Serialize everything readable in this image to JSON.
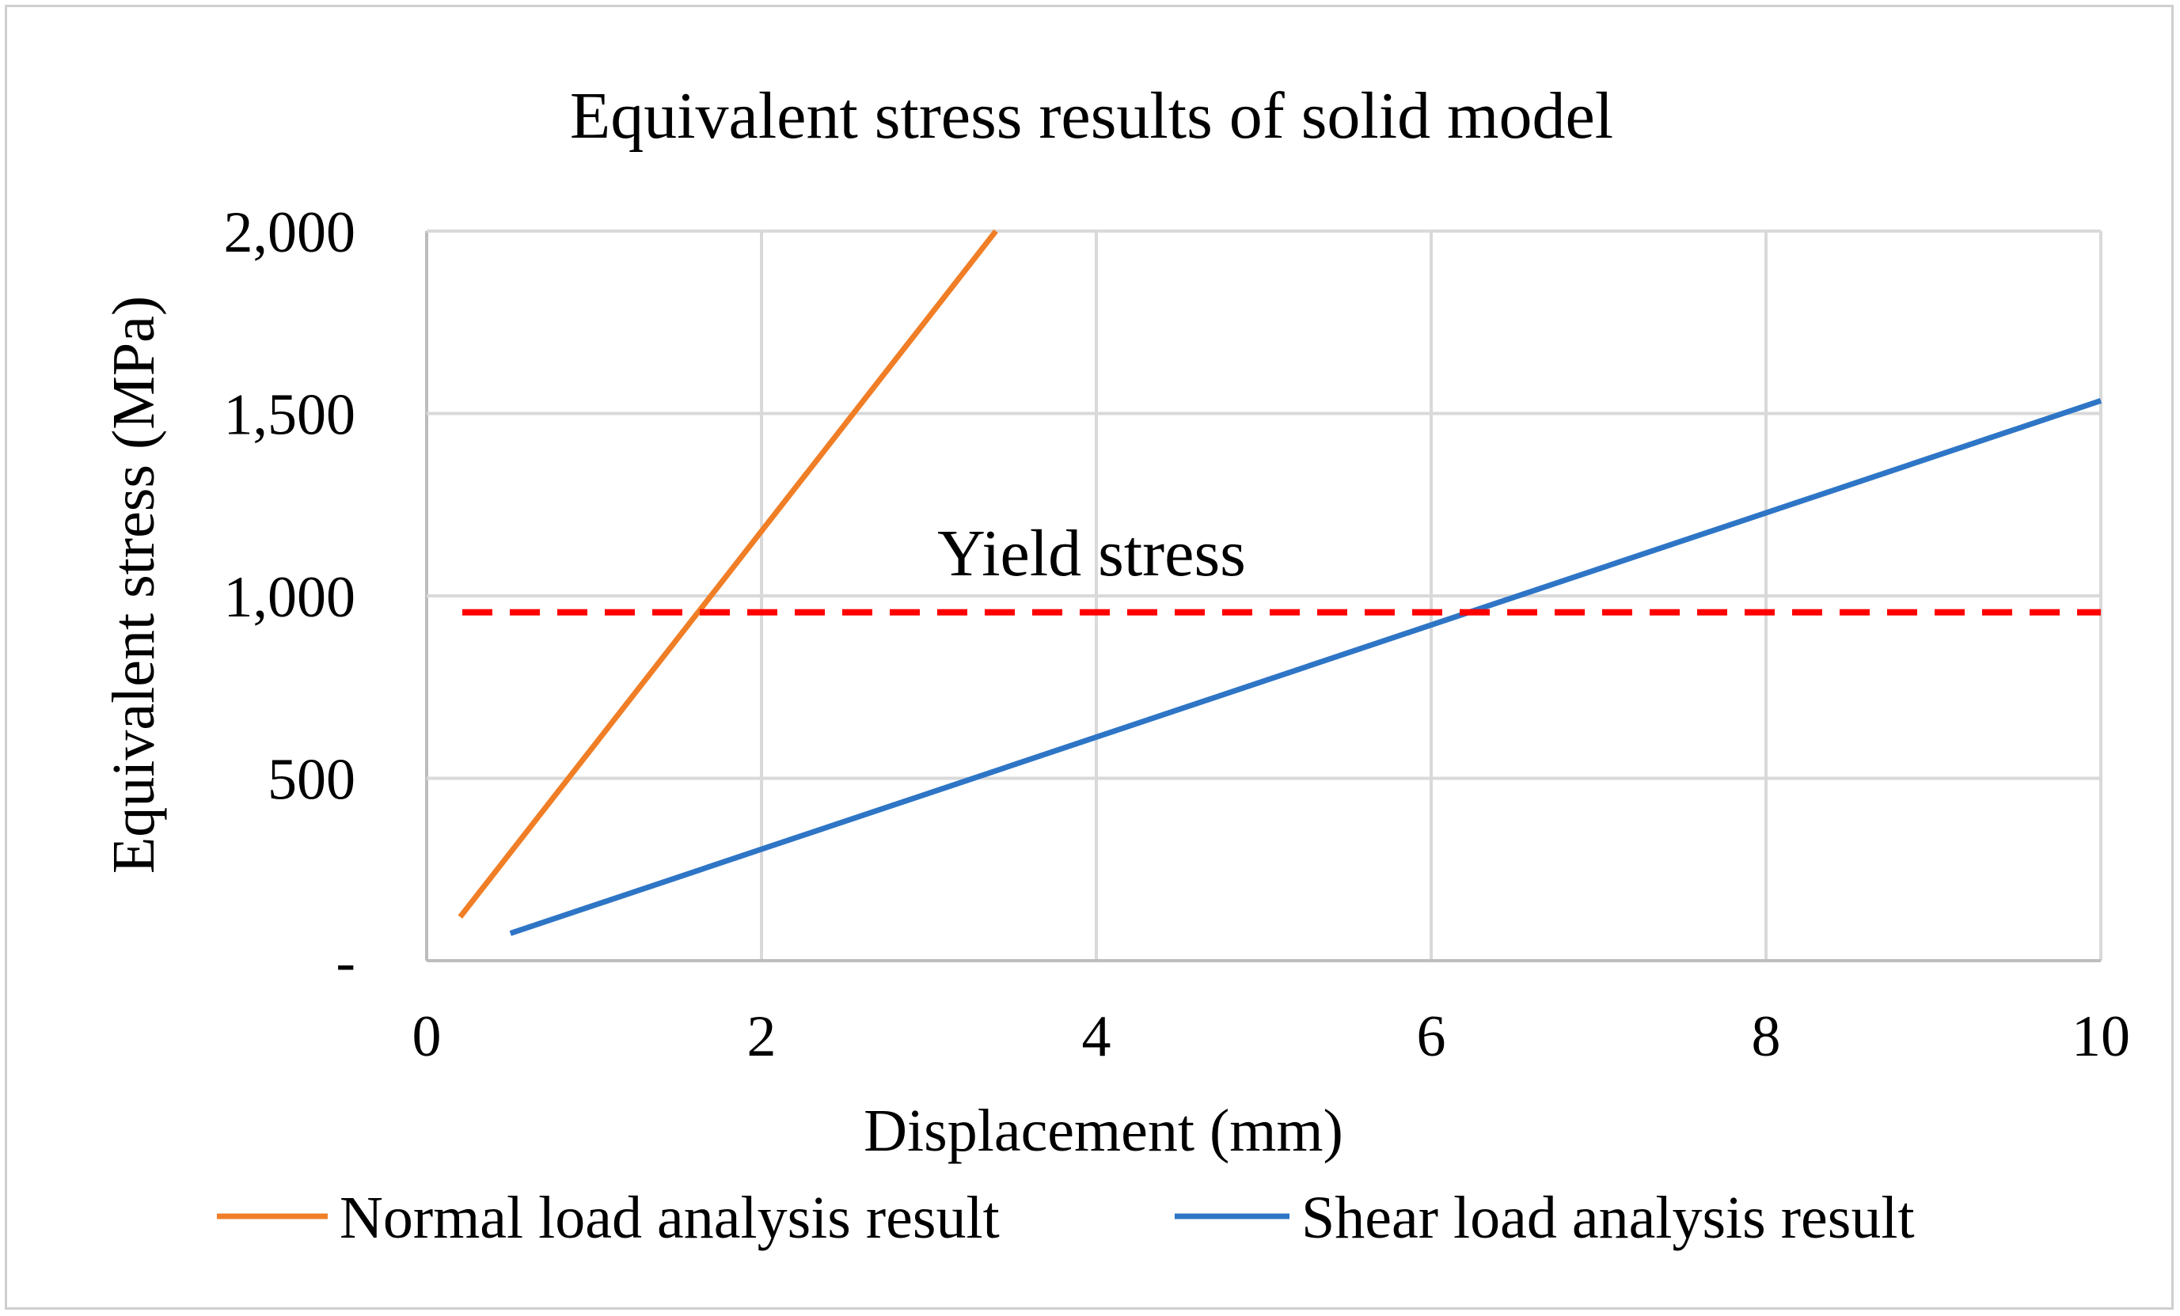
{
  "chart_data": {
    "type": "line",
    "title": "Equivalent stress results of solid model",
    "xlabel": "Displacement (mm)",
    "ylabel": "Equivalent stress (MPa)",
    "xlim": [
      0,
      10
    ],
    "ylim": [
      0,
      2000
    ],
    "x_ticks": [
      0,
      2,
      4,
      6,
      8,
      10
    ],
    "x_tick_labels": [
      "0",
      "2",
      "4",
      "6",
      "8",
      "10"
    ],
    "y_ticks": [
      0,
      500,
      1000,
      1500,
      2000
    ],
    "y_tick_labels": [
      "-",
      "500",
      "1,000",
      "1,500",
      "2,000"
    ],
    "grid": true,
    "legend_position": "bottom",
    "series": [
      {
        "name": "Normal load analysis result",
        "color": "#F07E26",
        "x": [
          0.2,
          3.4
        ],
        "y": [
          120,
          2000
        ]
      },
      {
        "name": "Shear load analysis result",
        "color": "#2E75C6",
        "x": [
          0.5,
          10
        ],
        "y": [
          75,
          1535
        ]
      }
    ],
    "reference_line": {
      "label": "Yield stress",
      "y": 955,
      "color": "#FF0000",
      "style": "dashed"
    }
  }
}
